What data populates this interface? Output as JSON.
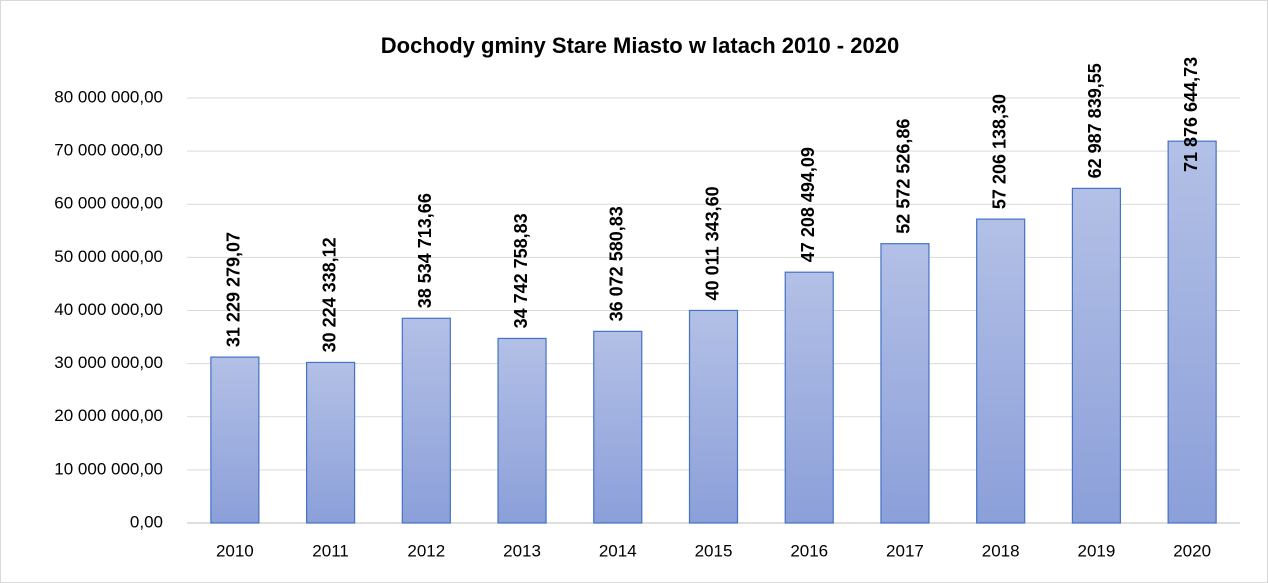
{
  "chart_data": {
    "type": "bar",
    "title": "Dochody gminy Stare Miasto w latach 2010 - 2020",
    "categories": [
      "2010",
      "2011",
      "2012",
      "2013",
      "2014",
      "2015",
      "2016",
      "2017",
      "2018",
      "2019",
      "2020"
    ],
    "values": [
      31229279.07,
      30224338.12,
      38534713.66,
      34742758.83,
      36072580.83,
      40011343.6,
      47208494.09,
      52572526.86,
      57206138.3,
      62987839.55,
      71876644.73
    ],
    "value_labels": [
      "31 229 279,07",
      "30 224 338,12",
      "38 534 713,66",
      "34 742 758,83",
      "36 072 580,83",
      "40 011 343,60",
      "47 208 494,09",
      "52 572 526,86",
      "57 206 138,30",
      "62 987 839,55",
      "71 876 644,73"
    ],
    "color": "#4472c4",
    "ylim": [
      0,
      80000000
    ],
    "yticks": [
      {
        "value": 0,
        "label": "0,00"
      },
      {
        "value": 10000000,
        "label": "10 000 000,00"
      },
      {
        "value": 20000000,
        "label": "20 000 000,00"
      },
      {
        "value": 30000000,
        "label": "30 000 000,00"
      },
      {
        "value": 40000000,
        "label": "40 000 000,00"
      },
      {
        "value": 50000000,
        "label": "50 000 000,00"
      },
      {
        "value": 60000000,
        "label": "60 000 000,00"
      },
      {
        "value": 70000000,
        "label": "70 000 000,00"
      },
      {
        "value": 80000000,
        "label": "80 000 000,00"
      }
    ],
    "grid": true
  }
}
